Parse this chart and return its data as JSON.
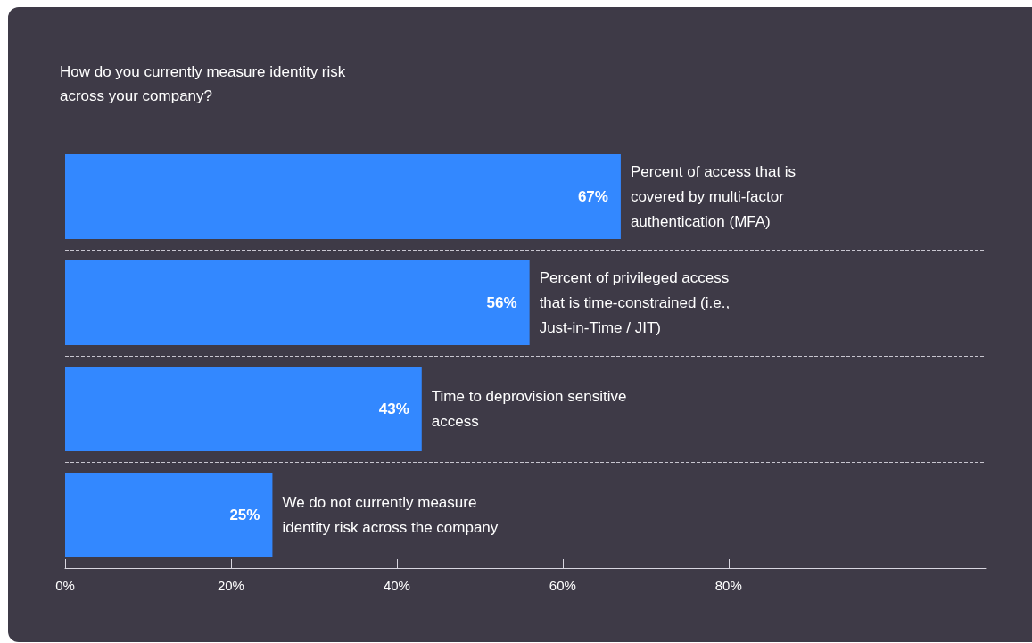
{
  "chart_data": {
    "type": "bar",
    "orientation": "horizontal",
    "title": "How do you currently measure identity risk across your company?",
    "categories": [
      "Percent of access that is covered by multi-factor authentication (MFA)",
      "Percent of privileged access that is time-constrained (i.e., Just-in-Time / JIT)",
      "Time to deprovision sensitive access",
      "We do not currently measure identity risk across the company"
    ],
    "values": [
      67,
      56,
      43,
      25
    ],
    "value_labels": [
      "67%",
      "56%",
      "43%",
      "25%"
    ],
    "color": "#3388ff",
    "xlim": [
      0,
      111
    ],
    "xticks": [
      {
        "value": 0,
        "label": "0%"
      },
      {
        "value": 20,
        "label": "20%"
      },
      {
        "value": 40,
        "label": "40%"
      },
      {
        "value": 60,
        "label": "60%"
      },
      {
        "value": 80,
        "label": "80%"
      }
    ],
    "grid": "y",
    "legend": false
  }
}
